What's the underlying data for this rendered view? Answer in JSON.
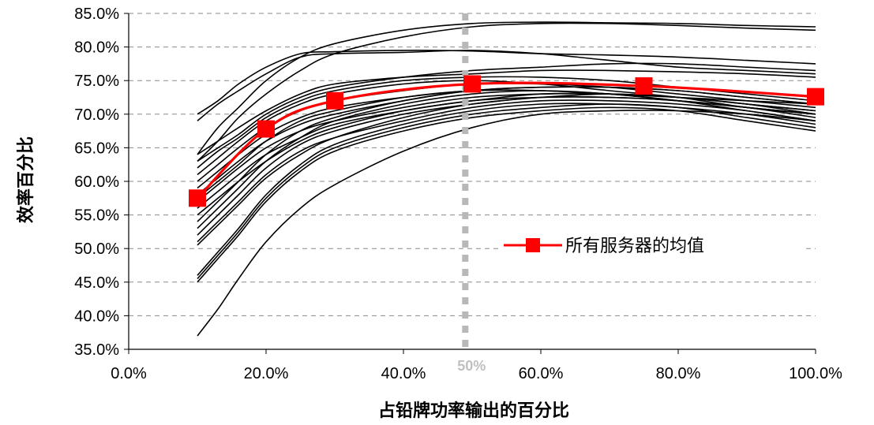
{
  "chart_data": {
    "type": "line",
    "xlabel": "占铅牌功率输出的百分比",
    "ylabel": "效率百分比",
    "x_ticks": [
      "0.0%",
      "20.0%",
      "40.0%",
      "60.0%",
      "80.0%",
      "100.0%"
    ],
    "y_ticks": [
      "35.0%",
      "40.0%",
      "45.0%",
      "50.0%",
      "55.0%",
      "60.0%",
      "65.0%",
      "70.0%",
      "75.0%",
      "80.0%",
      "85.0%"
    ],
    "xlim": [
      0,
      100
    ],
    "ylim": [
      35,
      85
    ],
    "grid": "horizontal dashed",
    "legend_position": "right",
    "reference_line": {
      "x": 49,
      "label": "50%"
    },
    "average_series": {
      "name": "所有服务器的均值",
      "color": "#ff0000",
      "x": [
        10,
        20,
        30,
        50,
        75,
        100
      ],
      "y": [
        57.5,
        67.8,
        72.0,
        74.5,
        74.2,
        72.6
      ]
    },
    "server_curves": [
      {
        "x": [
          10,
          13,
          16,
          20,
          25,
          30,
          40,
          50,
          60,
          70,
          80,
          90,
          100
        ],
        "y": [
          70,
          72,
          74.5,
          77,
          79,
          79.3,
          79.5,
          79.4,
          79,
          78.8,
          78.5,
          78,
          77.5
        ]
      },
      {
        "x": [
          10,
          13,
          16,
          20,
          25,
          30,
          40,
          50,
          60,
          70,
          80,
          90,
          100
        ],
        "y": [
          69,
          71.5,
          73.5,
          76,
          78.5,
          79,
          79.2,
          79.5,
          79,
          78,
          77,
          76.5,
          76
        ]
      },
      {
        "x": [
          10,
          13,
          16,
          20,
          25,
          30,
          40,
          50,
          60,
          70,
          80,
          90,
          100
        ],
        "y": [
          64,
          68,
          71,
          75,
          78.5,
          80.5,
          82.5,
          83.5,
          83.7,
          83.6,
          83.5,
          83.2,
          83
        ]
      },
      {
        "x": [
          10,
          13,
          16,
          20,
          25,
          30,
          40,
          50,
          60,
          70,
          80,
          90,
          100
        ],
        "y": [
          63,
          66,
          69.5,
          73,
          76.5,
          79,
          81.5,
          83,
          83.5,
          83.5,
          83.2,
          82.8,
          82.5
        ]
      },
      {
        "x": [
          10,
          13,
          16,
          20,
          25,
          30,
          40,
          50,
          60,
          70,
          80,
          90,
          100
        ],
        "y": [
          64,
          66,
          68,
          70.5,
          73,
          74.5,
          75.5,
          76,
          76.5,
          76.5,
          76.3,
          76,
          75.5
        ]
      },
      {
        "x": [
          10,
          13,
          16,
          20,
          25,
          30,
          40,
          50,
          60,
          70,
          80,
          90,
          100
        ],
        "y": [
          63,
          65,
          67,
          70,
          72.5,
          74,
          75.5,
          76.5,
          77,
          77.5,
          77.5,
          77,
          76.5
        ]
      },
      {
        "x": [
          10,
          13,
          16,
          20,
          25,
          30,
          40,
          50,
          60,
          70,
          80,
          90,
          100
        ],
        "y": [
          62,
          64.5,
          66.5,
          69.5,
          72,
          73.5,
          75,
          75.5,
          75.5,
          75,
          74,
          73,
          72
        ]
      },
      {
        "x": [
          10,
          13,
          16,
          20,
          25,
          30,
          40,
          50,
          60,
          70,
          80,
          90,
          100
        ],
        "y": [
          61,
          63.5,
          66,
          69,
          71.5,
          73,
          74.5,
          75,
          74.5,
          73.5,
          72.5,
          71,
          70
        ]
      },
      {
        "x": [
          10,
          13,
          16,
          20,
          25,
          30,
          40,
          50,
          60,
          70,
          80,
          90,
          100
        ],
        "y": [
          60,
          62.5,
          65,
          68,
          70.5,
          72,
          73.5,
          74.5,
          74.5,
          74,
          73,
          72,
          71
        ]
      },
      {
        "x": [
          10,
          13,
          16,
          20,
          25,
          30,
          40,
          50,
          60,
          70,
          80,
          90,
          100
        ],
        "y": [
          59,
          61.5,
          64,
          67,
          69.5,
          71,
          72.5,
          73.5,
          73.5,
          73,
          72,
          71,
          70
        ]
      },
      {
        "x": [
          10,
          13,
          16,
          20,
          25,
          30,
          40,
          50,
          60,
          70,
          80,
          90,
          100
        ],
        "y": [
          58,
          60.5,
          63,
          66,
          68.5,
          70,
          72,
          73.5,
          74,
          74,
          73.5,
          72.5,
          71.5
        ]
      },
      {
        "x": [
          10,
          13,
          16,
          20,
          25,
          30,
          40,
          50,
          60,
          70,
          80,
          90,
          100
        ],
        "y": [
          57,
          59.5,
          62,
          65,
          67.5,
          69,
          71,
          72.5,
          73,
          73,
          72.5,
          71.5,
          70.5
        ]
      },
      {
        "x": [
          10,
          13,
          16,
          20,
          25,
          30,
          40,
          50,
          60,
          70,
          80,
          90,
          100
        ],
        "y": [
          56,
          58.5,
          61,
          64,
          66.5,
          68.5,
          70.5,
          72,
          72.5,
          72.5,
          72,
          71,
          70
        ]
      },
      {
        "x": [
          10,
          13,
          16,
          20,
          25,
          30,
          40,
          50,
          60,
          70,
          80,
          90,
          100
        ],
        "y": [
          55,
          57.5,
          60,
          63,
          66,
          68,
          70.5,
          72,
          73,
          73,
          72.5,
          71.5,
          70.5
        ]
      },
      {
        "x": [
          10,
          13,
          16,
          20,
          25,
          30,
          40,
          50,
          60,
          70,
          80,
          90,
          100
        ],
        "y": [
          52,
          55,
          58,
          62,
          65.5,
          67.5,
          70,
          71.5,
          72.5,
          72.5,
          72,
          71,
          69.5
        ]
      },
      {
        "x": [
          10,
          13,
          16,
          20,
          25,
          30,
          40,
          50,
          60,
          70,
          80,
          90,
          100
        ],
        "y": [
          51,
          54,
          57,
          61,
          64.5,
          66.5,
          69,
          71,
          72,
          72,
          71.5,
          70.5,
          69
        ]
      },
      {
        "x": [
          10,
          13,
          16,
          20,
          25,
          30,
          40,
          50,
          60,
          70,
          80,
          90,
          100
        ],
        "y": [
          50.5,
          53.5,
          56.5,
          60.5,
          64,
          66.5,
          69.5,
          71.5,
          72.5,
          73,
          72.5,
          71.5,
          70
        ]
      },
      {
        "x": [
          10,
          13,
          16,
          20,
          25,
          30,
          40,
          50,
          60,
          70,
          80,
          90,
          100
        ],
        "y": [
          46,
          49.5,
          53,
          58,
          62.5,
          65.5,
          68.5,
          70.5,
          71.5,
          71.5,
          71,
          70,
          68.5
        ]
      },
      {
        "x": [
          10,
          13,
          16,
          20,
          25,
          30,
          40,
          50,
          60,
          70,
          80,
          90,
          100
        ],
        "y": [
          45.5,
          49,
          52.5,
          57.5,
          62,
          65,
          68,
          70,
          71,
          71.5,
          71,
          69.5,
          68
        ]
      },
      {
        "x": [
          10,
          13,
          16,
          20,
          25,
          30,
          40,
          50,
          60,
          70,
          80,
          90,
          100
        ],
        "y": [
          45,
          48.5,
          52,
          57,
          61.5,
          64.5,
          67.5,
          69.5,
          70.5,
          71,
          70.5,
          69,
          67.5
        ]
      },
      {
        "x": [
          10,
          13,
          16,
          20,
          25,
          30,
          40,
          50,
          60,
          70,
          80,
          90,
          100
        ],
        "y": [
          37,
          41,
          45.5,
          51,
          56,
          59.5,
          64.5,
          68,
          70,
          70.5,
          70.5,
          70,
          69
        ]
      },
      {
        "x": [
          10,
          13,
          16,
          20,
          25,
          30,
          40,
          50,
          60,
          70,
          80,
          90,
          100
        ],
        "y": [
          54,
          57,
          60,
          64,
          67.5,
          69.5,
          72,
          73.5,
          74,
          74,
          73.5,
          72.5,
          71.5
        ]
      },
      {
        "x": [
          10,
          13,
          16,
          20,
          25,
          30,
          40,
          50,
          60,
          70,
          80,
          90,
          100
        ],
        "y": [
          53,
          56,
          59,
          63,
          66.5,
          69,
          71.5,
          73,
          73.5,
          73,
          72,
          70.5,
          69
        ]
      },
      {
        "x": [
          10,
          13,
          16,
          20,
          25,
          30,
          40,
          50,
          60,
          70,
          80,
          90,
          100
        ],
        "y": [
          57.5,
          60,
          62.5,
          66,
          69,
          70.5,
          72.5,
          73.5,
          73.5,
          73,
          72.5,
          72,
          71.5
        ]
      }
    ]
  }
}
